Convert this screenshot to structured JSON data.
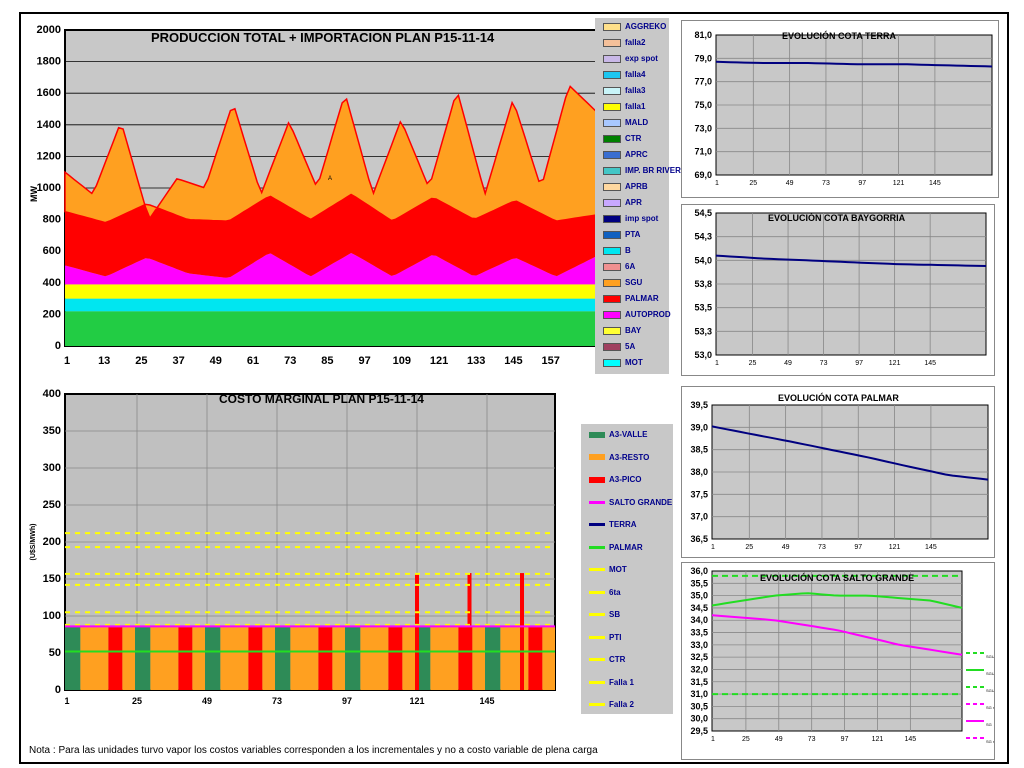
{
  "note": "Nota : Para las unidades turvo vapor los costos variables corresponden a los incrementales y no a costo variable de plena carga",
  "chart_data": [
    {
      "id": "produccion",
      "type": "area",
      "title": "PRODUCCION TOTAL + IMPORTACION PLAN    P15-11-14",
      "ylabel": "MW",
      "ylim": [
        0,
        2000
      ],
      "yticks": [
        "0",
        "200",
        "400",
        "600",
        "800",
        "1000",
        "1200",
        "1400",
        "1600",
        "1800",
        "2000"
      ],
      "xticks": [
        "1",
        "13",
        "25",
        "37",
        "49",
        "61",
        "73",
        "85",
        "97",
        "109",
        "121",
        "133",
        "145",
        "157"
      ],
      "annotation": "A",
      "legend": [
        {
          "name": "AGGREKO",
          "color": "#ffe08a"
        },
        {
          "name": "falla2",
          "color": "#f4c09a"
        },
        {
          "name": "exp spot",
          "color": "#c9b8e8"
        },
        {
          "name": "falla4",
          "color": "#1cc6f0"
        },
        {
          "name": "falla3",
          "color": "#c8f4f8"
        },
        {
          "name": "falla1",
          "color": "#ffff00"
        },
        {
          "name": "MALD",
          "color": "#a8c8ff"
        },
        {
          "name": "CTR",
          "color": "#008000"
        },
        {
          "name": "APRC",
          "color": "#3a6ed0"
        },
        {
          "name": "IMP. BR RIVERA",
          "color": "#44c6c6"
        },
        {
          "name": "APRB",
          "color": "#ffd8a0"
        },
        {
          "name": "APR",
          "color": "#c8a8ff"
        },
        {
          "name": "imp spot",
          "color": "#000080"
        },
        {
          "name": "PTA",
          "color": "#1060c0"
        },
        {
          "name": "B",
          "color": "#00e6f0"
        },
        {
          "name": "6A",
          "color": "#f09090"
        },
        {
          "name": "SGU",
          "color": "#ffa020"
        },
        {
          "name": "PALMAR",
          "color": "#ff0000"
        },
        {
          "name": "AUTOPROD",
          "color": "#ff00ff"
        },
        {
          "name": "BAY",
          "color": "#ffff33"
        },
        {
          "name": "5A",
          "color": "#a04060"
        },
        {
          "name": "MOT",
          "color": "#00ffff"
        }
      ],
      "layers_top": [
        {
          "name": "CTR",
          "color": "#22cc44",
          "top": [
            220,
            220
          ]
        },
        {
          "name": "B",
          "color": "#00e6f0",
          "top": [
            300,
            300
          ]
        },
        {
          "name": "BAY",
          "color": "#ffff00",
          "top": [
            390,
            390
          ]
        },
        {
          "name": "AUTOPROD",
          "color": "#ff00ff",
          "top": [
            510,
            440,
            560,
            460,
            430,
            590,
            440,
            590,
            440,
            580,
            440,
            560,
            440,
            570
          ]
        },
        {
          "name": "PALMAR",
          "color": "#ff0000",
          "top": [
            850,
            780,
            900,
            800,
            790,
            950,
            800,
            960,
            790,
            940,
            800,
            920,
            790,
            830
          ]
        },
        {
          "name": "SGU",
          "color": "#ffa020",
          "top": [
            1100,
            960,
            1420,
            800,
            1060,
            1000,
            1540,
            960,
            1420,
            1000,
            1600,
            960,
            1430,
            1000,
            1620,
            960,
            1560,
            1000,
            1650,
            1480
          ]
        }
      ]
    },
    {
      "id": "terra",
      "type": "line",
      "title": "EVOLUCIÓN COTA TERRA",
      "ylim": [
        69,
        81
      ],
      "yticks": [
        "69,0",
        "71,0",
        "73,0",
        "75,0",
        "77,0",
        "79,0",
        "81,0"
      ],
      "xticks": [
        "1",
        "25",
        "49",
        "73",
        "97",
        "121",
        "145"
      ],
      "series": [
        {
          "name": "TERRA",
          "color": "#000080",
          "values": [
            78.7,
            78.6,
            78.6,
            78.5,
            78.5,
            78.4,
            78.3
          ]
        }
      ]
    },
    {
      "id": "baygorria",
      "type": "line",
      "title": "EVOLUCIÓN COTA BAYGORRIA",
      "ylim": [
        53.0,
        54.5
      ],
      "yticks": [
        "53,0",
        "53,3",
        "53,5",
        "53,8",
        "54,0",
        "54,3",
        "54,5"
      ],
      "xticks": [
        "1",
        "25",
        "49",
        "73",
        "97",
        "121",
        "145"
      ],
      "series": [
        {
          "name": "BAYGORRIA",
          "color": "#000080",
          "values": [
            54.05,
            54.02,
            54.0,
            53.98,
            53.96,
            53.95,
            53.94
          ]
        }
      ]
    },
    {
      "id": "costo",
      "type": "bar",
      "title": "COSTO MARGINAL PLAN    P15-11-14",
      "ylabel": "(U$S/MWh)",
      "ylim": [
        0,
        400
      ],
      "yticks": [
        "0",
        "50",
        "100",
        "150",
        "200",
        "250",
        "300",
        "350",
        "400"
      ],
      "xticks": [
        "1",
        "25",
        "49",
        "73",
        "97",
        "121",
        "145"
      ],
      "base_value": 85,
      "blocks": [
        "A3-VALLE",
        "A3-RESTO",
        "A3-PICO"
      ],
      "spikes": [
        {
          "x": 120,
          "value": 158
        },
        {
          "x": 138,
          "value": 158
        },
        {
          "x": 156,
          "value": 158
        }
      ],
      "hlines": [
        {
          "name": "MOT",
          "value": 212
        },
        {
          "name": "6ta",
          "value": 193
        },
        {
          "name": "SB",
          "value": 157
        },
        {
          "name": "PTI",
          "value": 142
        },
        {
          "name": "CTR",
          "value": 105
        },
        {
          "name": "Falla 1",
          "value": 88
        }
      ],
      "salto_grande": 86,
      "palmar": 52,
      "legend": [
        {
          "name": "A3-VALLE",
          "color": "#2e8b57"
        },
        {
          "name": "A3-RESTO",
          "color": "#ffa020"
        },
        {
          "name": "A3-PICO",
          "color": "#ff0000"
        },
        {
          "name": "SALTO GRANDE",
          "color": "#ff00ff"
        },
        {
          "name": "TERRA",
          "color": "#000080"
        },
        {
          "name": "PALMAR",
          "color": "#22dd22"
        },
        {
          "name": "MOT",
          "color": "#ffff00"
        },
        {
          "name": "6ta",
          "color": "#ffff00"
        },
        {
          "name": "SB",
          "color": "#ffff00"
        },
        {
          "name": "PTI",
          "color": "#ffff00"
        },
        {
          "name": "CTR",
          "color": "#ffff00"
        },
        {
          "name": "Falla 1",
          "color": "#ffff00"
        },
        {
          "name": "Falla 2",
          "color": "#ffff00"
        }
      ]
    },
    {
      "id": "palmar",
      "type": "line",
      "title": "EVOLUCIÓN COTA PALMAR",
      "ylim": [
        36.5,
        39.5
      ],
      "yticks": [
        "36,5",
        "37,0",
        "37,5",
        "38,0",
        "38,5",
        "39,0",
        "39,5"
      ],
      "xticks": [
        "1",
        "25",
        "49",
        "73",
        "97",
        "121",
        "145"
      ],
      "series": [
        {
          "name": "PALMAR",
          "color": "#000080",
          "values": [
            39.02,
            38.85,
            38.68,
            38.5,
            38.32,
            38.12,
            37.93,
            37.83
          ]
        }
      ]
    },
    {
      "id": "saltogrande",
      "type": "line",
      "title": "EVOLUCIÓN COTA SALTO GRANDE",
      "ylim": [
        29.5,
        36.0
      ],
      "yticks": [
        "29,5",
        "30,0",
        "30,5",
        "31,0",
        "31,5",
        "32,0",
        "32,5",
        "33,0",
        "33,5",
        "34,0",
        "34,5",
        "35,0",
        "35,5",
        "36,0"
      ],
      "xticks": [
        "1",
        "25",
        "49",
        "73",
        "97",
        "121",
        "145"
      ],
      "legend": [
        "SGU max",
        "SGU real",
        "SGU min",
        "SG max",
        "SG",
        "SG min"
      ],
      "hlines": [
        {
          "value": 35.8,
          "color": "#22dd22"
        },
        {
          "value": 31.0,
          "color": "#22dd22"
        }
      ],
      "series": [
        {
          "name": "SGU",
          "color": "#22dd22",
          "values": [
            34.6,
            34.8,
            35.0,
            35.1,
            35.0,
            35.0,
            34.9,
            34.8,
            34.5
          ]
        },
        {
          "name": "SG",
          "color": "#ff00ff",
          "values": [
            34.2,
            34.1,
            34.0,
            33.8,
            33.6,
            33.3,
            33.0,
            32.8,
            32.6
          ]
        }
      ]
    }
  ]
}
